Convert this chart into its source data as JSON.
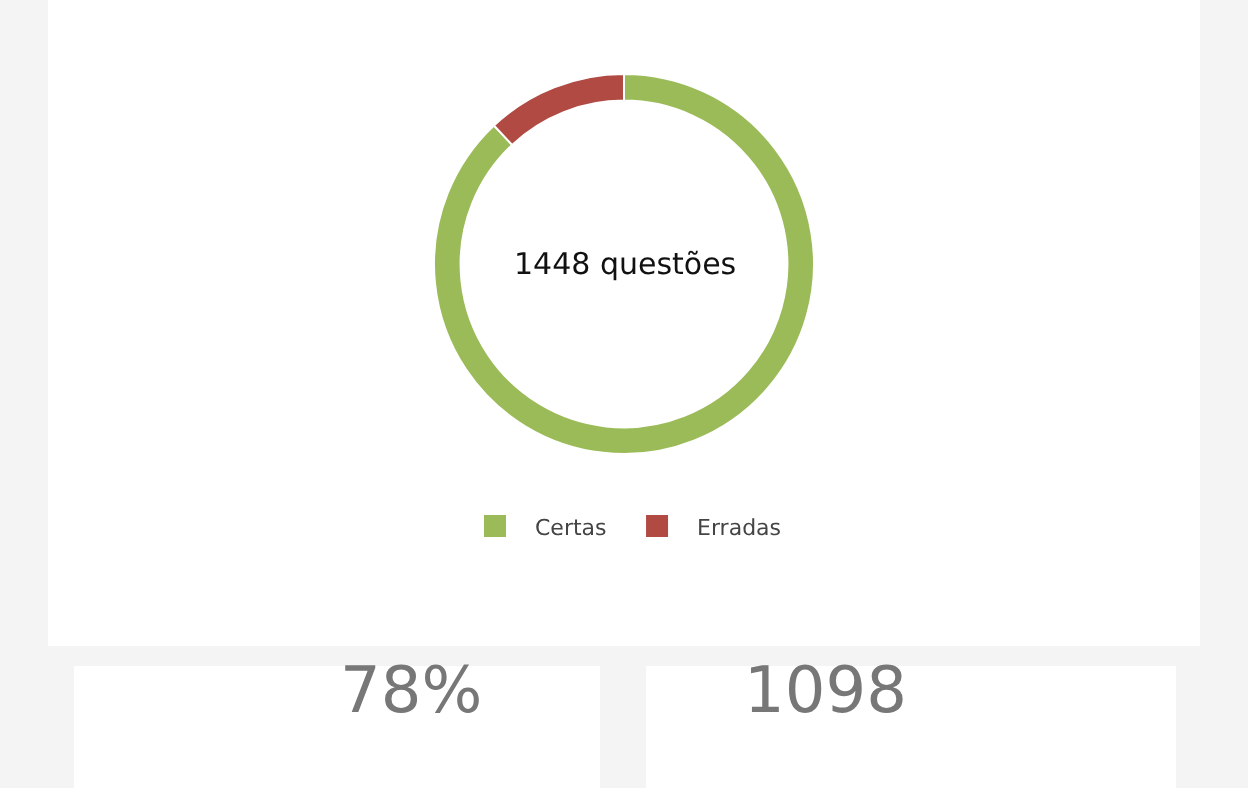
{
  "chart_data": {
    "type": "donut",
    "categories": [
      "Certas",
      "Erradas"
    ],
    "values": [
      88,
      12
    ],
    "colors": [
      "#9bbb59",
      "#b04a43"
    ],
    "legend": "bottom",
    "annotations": [
      "1448 questões",
      "78%",
      "1098"
    ]
  }
}
